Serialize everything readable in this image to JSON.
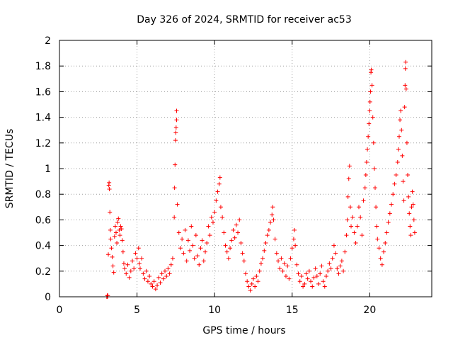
{
  "chart_data": {
    "type": "scatter",
    "title": "Day 326 of 2024, SRMTID for receiver ac53",
    "xlabel": "GPS time / hours",
    "ylabel": "SRMTID / TECUs",
    "xlim": [
      0,
      24
    ],
    "ylim": [
      0,
      2
    ],
    "xticks": [
      0,
      5,
      10,
      15,
      20
    ],
    "yticks": [
      0,
      0.2,
      0.4,
      0.6,
      0.8,
      1,
      1.2,
      1.4,
      1.6,
      1.8,
      2
    ],
    "xtick_labels": [
      "0",
      "5",
      "10",
      "15",
      "20"
    ],
    "ytick_labels": [
      "0",
      "0.2",
      "0.4",
      "0.6",
      "0.8",
      "1",
      "1.2",
      "1.4",
      "1.6",
      "1.8",
      "2"
    ],
    "grid": true,
    "marker": "+",
    "color": "#ff0000",
    "series": [
      {
        "name": "SRMTID",
        "points": [
          [
            3.05,
            0.0
          ],
          [
            3.08,
            0.01
          ],
          [
            3.1,
            0.0
          ],
          [
            3.12,
            0.01
          ],
          [
            3.15,
            0.33
          ],
          [
            3.18,
            0.87
          ],
          [
            3.2,
            0.89
          ],
          [
            3.22,
            0.84
          ],
          [
            3.25,
            0.66
          ],
          [
            3.28,
            0.52
          ],
          [
            3.3,
            0.45
          ],
          [
            3.35,
            0.38
          ],
          [
            3.4,
            0.31
          ],
          [
            3.45,
            0.24
          ],
          [
            3.5,
            0.19
          ],
          [
            3.55,
            0.47
          ],
          [
            3.6,
            0.55
          ],
          [
            3.65,
            0.5
          ],
          [
            3.7,
            0.42
          ],
          [
            3.75,
            0.58
          ],
          [
            3.8,
            0.61
          ],
          [
            3.85,
            0.52
          ],
          [
            3.9,
            0.48
          ],
          [
            3.95,
            0.55
          ],
          [
            4.0,
            0.53
          ],
          [
            4.05,
            0.44
          ],
          [
            4.1,
            0.35
          ],
          [
            4.15,
            0.26
          ],
          [
            4.2,
            0.22
          ],
          [
            4.3,
            0.18
          ],
          [
            4.4,
            0.25
          ],
          [
            4.5,
            0.15
          ],
          [
            4.6,
            0.2
          ],
          [
            4.7,
            0.28
          ],
          [
            4.8,
            0.22
          ],
          [
            4.9,
            0.34
          ],
          [
            5.0,
            0.3
          ],
          [
            5.1,
            0.38
          ],
          [
            5.15,
            0.26
          ],
          [
            5.2,
            0.22
          ],
          [
            5.3,
            0.3
          ],
          [
            5.4,
            0.18
          ],
          [
            5.5,
            0.14
          ],
          [
            5.6,
            0.2
          ],
          [
            5.7,
            0.12
          ],
          [
            5.8,
            0.16
          ],
          [
            5.9,
            0.1
          ],
          [
            6.0,
            0.08
          ],
          [
            6.1,
            0.12
          ],
          [
            6.2,
            0.06
          ],
          [
            6.3,
            0.09
          ],
          [
            6.4,
            0.15
          ],
          [
            6.5,
            0.11
          ],
          [
            6.6,
            0.18
          ],
          [
            6.7,
            0.14
          ],
          [
            6.8,
            0.2
          ],
          [
            6.9,
            0.16
          ],
          [
            7.0,
            0.22
          ],
          [
            7.1,
            0.18
          ],
          [
            7.2,
            0.25
          ],
          [
            7.3,
            0.3
          ],
          [
            7.4,
            0.62
          ],
          [
            7.42,
            0.85
          ],
          [
            7.45,
            1.03
          ],
          [
            7.48,
            1.22
          ],
          [
            7.5,
            1.28
          ],
          [
            7.52,
            1.32
          ],
          [
            7.55,
            1.38
          ],
          [
            7.55,
            1.45
          ],
          [
            7.6,
            0.72
          ],
          [
            7.7,
            0.5
          ],
          [
            7.8,
            0.38
          ],
          [
            7.9,
            0.45
          ],
          [
            8.0,
            0.34
          ],
          [
            8.1,
            0.52
          ],
          [
            8.2,
            0.28
          ],
          [
            8.3,
            0.44
          ],
          [
            8.4,
            0.36
          ],
          [
            8.5,
            0.55
          ],
          [
            8.6,
            0.4
          ],
          [
            8.7,
            0.3
          ],
          [
            8.8,
            0.48
          ],
          [
            8.9,
            0.32
          ],
          [
            9.0,
            0.25
          ],
          [
            9.1,
            0.38
          ],
          [
            9.2,
            0.44
          ],
          [
            9.3,
            0.28
          ],
          [
            9.4,
            0.35
          ],
          [
            9.5,
            0.42
          ],
          [
            9.6,
            0.55
          ],
          [
            9.7,
            0.48
          ],
          [
            9.8,
            0.62
          ],
          [
            9.9,
            0.58
          ],
          [
            10.0,
            0.66
          ],
          [
            10.1,
            0.75
          ],
          [
            10.2,
            0.82
          ],
          [
            10.3,
            0.88
          ],
          [
            10.35,
            0.93
          ],
          [
            10.4,
            0.7
          ],
          [
            10.5,
            0.62
          ],
          [
            10.6,
            0.5
          ],
          [
            10.7,
            0.4
          ],
          [
            10.8,
            0.35
          ],
          [
            10.9,
            0.3
          ],
          [
            11.0,
            0.38
          ],
          [
            11.1,
            0.44
          ],
          [
            11.2,
            0.52
          ],
          [
            11.3,
            0.46
          ],
          [
            11.4,
            0.56
          ],
          [
            11.5,
            0.5
          ],
          [
            11.6,
            0.6
          ],
          [
            11.7,
            0.42
          ],
          [
            11.8,
            0.34
          ],
          [
            11.9,
            0.28
          ],
          [
            12.0,
            0.18
          ],
          [
            12.1,
            0.12
          ],
          [
            12.2,
            0.08
          ],
          [
            12.3,
            0.05
          ],
          [
            12.4,
            0.1
          ],
          [
            12.5,
            0.14
          ],
          [
            12.6,
            0.08
          ],
          [
            12.7,
            0.16
          ],
          [
            12.8,
            0.12
          ],
          [
            12.9,
            0.2
          ],
          [
            13.0,
            0.26
          ],
          [
            13.1,
            0.3
          ],
          [
            13.2,
            0.36
          ],
          [
            13.3,
            0.42
          ],
          [
            13.4,
            0.48
          ],
          [
            13.5,
            0.52
          ],
          [
            13.6,
            0.58
          ],
          [
            13.7,
            0.64
          ],
          [
            13.75,
            0.7
          ],
          [
            13.8,
            0.6
          ],
          [
            13.9,
            0.45
          ],
          [
            14.0,
            0.34
          ],
          [
            14.1,
            0.28
          ],
          [
            14.2,
            0.22
          ],
          [
            14.3,
            0.3
          ],
          [
            14.4,
            0.2
          ],
          [
            14.5,
            0.26
          ],
          [
            14.6,
            0.16
          ],
          [
            14.7,
            0.24
          ],
          [
            14.8,
            0.14
          ],
          [
            14.9,
            0.3
          ],
          [
            15.0,
            0.38
          ],
          [
            15.1,
            0.45
          ],
          [
            15.15,
            0.52
          ],
          [
            15.2,
            0.4
          ],
          [
            15.3,
            0.25
          ],
          [
            15.4,
            0.18
          ],
          [
            15.5,
            0.12
          ],
          [
            15.6,
            0.16
          ],
          [
            15.7,
            0.08
          ],
          [
            15.8,
            0.1
          ],
          [
            15.9,
            0.18
          ],
          [
            16.0,
            0.14
          ],
          [
            16.1,
            0.2
          ],
          [
            16.2,
            0.12
          ],
          [
            16.3,
            0.08
          ],
          [
            16.4,
            0.15
          ],
          [
            16.5,
            0.22
          ],
          [
            16.6,
            0.16
          ],
          [
            16.7,
            0.1
          ],
          [
            16.8,
            0.18
          ],
          [
            16.9,
            0.24
          ],
          [
            17.0,
            0.12
          ],
          [
            17.1,
            0.08
          ],
          [
            17.2,
            0.16
          ],
          [
            17.3,
            0.2
          ],
          [
            17.4,
            0.26
          ],
          [
            17.5,
            0.22
          ],
          [
            17.6,
            0.3
          ],
          [
            17.7,
            0.4
          ],
          [
            17.8,
            0.34
          ],
          [
            17.9,
            0.22
          ],
          [
            18.0,
            0.18
          ],
          [
            18.1,
            0.24
          ],
          [
            18.2,
            0.28
          ],
          [
            18.3,
            0.2
          ],
          [
            18.4,
            0.35
          ],
          [
            18.5,
            0.48
          ],
          [
            18.55,
            0.6
          ],
          [
            18.6,
            0.78
          ],
          [
            18.65,
            0.92
          ],
          [
            18.7,
            1.02
          ],
          [
            18.75,
            0.7
          ],
          [
            18.8,
            0.55
          ],
          [
            18.9,
            0.62
          ],
          [
            19.0,
            0.5
          ],
          [
            19.1,
            0.42
          ],
          [
            19.2,
            0.55
          ],
          [
            19.3,
            0.7
          ],
          [
            19.4,
            0.62
          ],
          [
            19.5,
            0.48
          ],
          [
            19.6,
            0.75
          ],
          [
            19.7,
            0.85
          ],
          [
            19.75,
            0.95
          ],
          [
            19.8,
            1.05
          ],
          [
            19.85,
            1.15
          ],
          [
            19.9,
            1.25
          ],
          [
            19.95,
            1.35
          ],
          [
            20.0,
            1.45
          ],
          [
            20.02,
            1.52
          ],
          [
            20.05,
            1.6
          ],
          [
            20.08,
            1.75
          ],
          [
            20.1,
            1.77
          ],
          [
            20.15,
            1.65
          ],
          [
            20.2,
            1.4
          ],
          [
            20.25,
            1.2
          ],
          [
            20.3,
            1.0
          ],
          [
            20.35,
            0.85
          ],
          [
            20.4,
            0.7
          ],
          [
            20.45,
            0.55
          ],
          [
            20.5,
            0.45
          ],
          [
            20.6,
            0.38
          ],
          [
            20.7,
            0.3
          ],
          [
            20.8,
            0.25
          ],
          [
            20.9,
            0.35
          ],
          [
            21.0,
            0.42
          ],
          [
            21.1,
            0.5
          ],
          [
            21.2,
            0.58
          ],
          [
            21.3,
            0.65
          ],
          [
            21.4,
            0.72
          ],
          [
            21.5,
            0.8
          ],
          [
            21.6,
            0.88
          ],
          [
            21.7,
            0.95
          ],
          [
            21.8,
            1.05
          ],
          [
            21.85,
            1.15
          ],
          [
            21.9,
            1.25
          ],
          [
            21.95,
            1.38
          ],
          [
            22.0,
            1.45
          ],
          [
            22.05,
            1.3
          ],
          [
            22.1,
            1.1
          ],
          [
            22.15,
            0.9
          ],
          [
            22.2,
            0.75
          ],
          [
            22.25,
            1.48
          ],
          [
            22.28,
            1.65
          ],
          [
            22.3,
            1.78
          ],
          [
            22.32,
            1.83
          ],
          [
            22.35,
            1.62
          ],
          [
            22.4,
            1.2
          ],
          [
            22.45,
            0.95
          ],
          [
            22.5,
            0.78
          ],
          [
            22.55,
            0.65
          ],
          [
            22.6,
            0.55
          ],
          [
            22.65,
            0.48
          ],
          [
            22.7,
            0.7
          ],
          [
            22.75,
            0.82
          ],
          [
            22.8,
            0.72
          ],
          [
            22.85,
            0.6
          ],
          [
            22.9,
            0.5
          ]
        ]
      }
    ]
  }
}
